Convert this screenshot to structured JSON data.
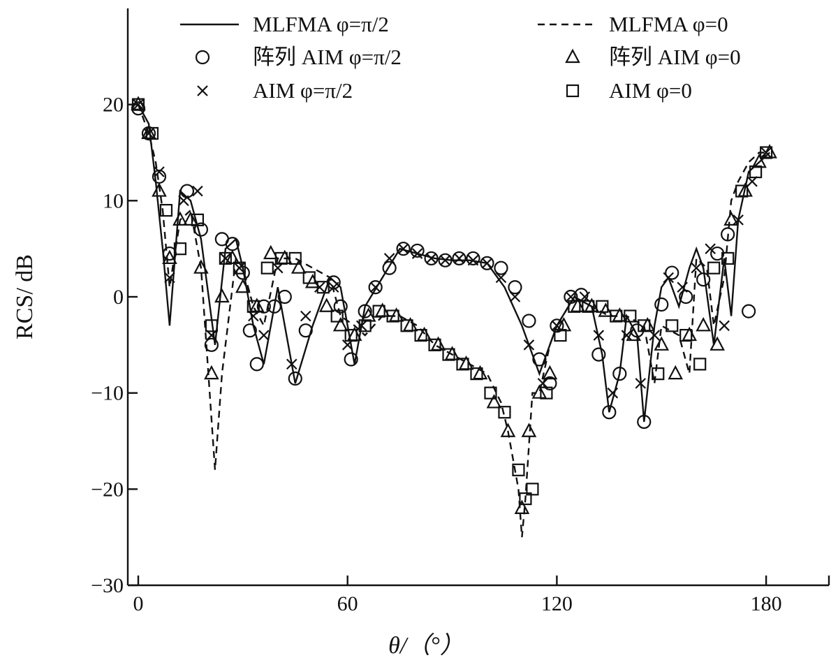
{
  "chart_data": {
    "type": "line",
    "title": "",
    "xlabel": "θ/（°）",
    "ylabel": "RCS/ dB",
    "xlim": [
      -3,
      198
    ],
    "ylim": [
      -30,
      30
    ],
    "xticks": [
      0,
      60,
      120,
      180
    ],
    "yticks": [
      -30,
      -20,
      -10,
      0,
      10,
      20
    ],
    "xtick_labels": [
      "0",
      "60",
      "120",
      "180"
    ],
    "ytick_labels": [
      "−30",
      "−20",
      "−10",
      "0",
      "10",
      "20"
    ],
    "grid": false,
    "legend_position": "top",
    "series": [
      {
        "name": "MLFMA φ=π/2",
        "style": "solid",
        "marker": "none",
        "x": [
          0,
          3,
          5,
          7,
          9,
          12,
          15,
          18,
          22,
          25,
          28,
          30,
          33,
          36,
          40,
          45,
          50,
          55,
          58,
          62,
          65,
          70,
          75,
          80,
          85,
          90,
          95,
          100,
          105,
          110,
          115,
          120,
          125,
          130,
          133,
          135,
          138,
          140,
          143,
          145,
          148,
          150,
          152,
          155,
          158,
          160,
          162,
          165,
          168,
          170,
          172,
          175,
          178,
          181
        ],
        "y": [
          20,
          18,
          12,
          5,
          -3,
          11,
          10,
          6,
          -5,
          5,
          6,
          3,
          -3,
          -7,
          1,
          -9,
          -3,
          2,
          1,
          -7,
          -1,
          2,
          5,
          4.5,
          4,
          3.8,
          3.8,
          3.5,
          1,
          -3,
          -8,
          -3,
          0,
          -1,
          -6,
          -12,
          -8,
          -2,
          -4,
          -13,
          -3,
          1,
          2,
          -1,
          3,
          5,
          3,
          -5,
          4,
          -2,
          8,
          13,
          14,
          15
        ]
      },
      {
        "name": "MLFMA φ=0",
        "style": "dashed",
        "marker": "none",
        "x": [
          0,
          3,
          5,
          7,
          9,
          12,
          15,
          18,
          22,
          24,
          28,
          30,
          33,
          36,
          40,
          45,
          50,
          55,
          58,
          62,
          65,
          70,
          75,
          80,
          85,
          90,
          95,
          100,
          104,
          106,
          109,
          110,
          111,
          113,
          115,
          118,
          120,
          125,
          130,
          135,
          140,
          145,
          148,
          150,
          155,
          158,
          160,
          163,
          165,
          168,
          170,
          172,
          175,
          178,
          181
        ],
        "y": [
          20,
          17,
          14,
          9,
          1,
          8,
          9,
          3,
          -18,
          -8,
          4,
          3,
          -1,
          -3,
          4,
          4,
          3,
          2,
          -2,
          -3,
          -4,
          -2,
          -2,
          -3,
          -5,
          -6,
          -7,
          -8,
          -11,
          -14,
          -20,
          -25,
          -21,
          -10,
          -10,
          -5,
          -3,
          0,
          -1,
          -2,
          -2,
          -3,
          -9,
          -3,
          -4,
          -8,
          4,
          3,
          -3,
          2,
          10,
          12,
          14,
          15,
          15
        ]
      },
      {
        "name": "阵列 AIM φ=π/2",
        "style": "none",
        "marker": "circle",
        "x": [
          0,
          3,
          6,
          9,
          14,
          18,
          21,
          24,
          27,
          30,
          32,
          34,
          36,
          39,
          42,
          45,
          48,
          56,
          58,
          61,
          65,
          68,
          72,
          76,
          80,
          84,
          88,
          92,
          96,
          100,
          104,
          108,
          112,
          115,
          118,
          120,
          124,
          127,
          132,
          135,
          138,
          143,
          145,
          150,
          153,
          157,
          162,
          166,
          169,
          175
        ],
        "y": [
          19.6,
          17,
          12.5,
          4.5,
          11,
          7,
          -5,
          6,
          5.5,
          2.5,
          -3.5,
          -7,
          -1,
          -1,
          0,
          -8.5,
          -3.5,
          1.5,
          -1,
          -6.5,
          -1.5,
          1,
          3,
          5,
          4.8,
          4,
          3.8,
          4,
          4,
          3.5,
          3,
          1,
          -2.5,
          -6.5,
          -9,
          -3,
          0,
          0.2,
          -6,
          -12,
          -8,
          -3.5,
          -13,
          -0.8,
          2.5,
          0,
          1.8,
          4.5,
          6.5,
          -1.5
        ]
      },
      {
        "name": "阵列 AIM φ=0",
        "style": "none",
        "marker": "triangle",
        "x": [
          0,
          3,
          6,
          9,
          12,
          15,
          18,
          21,
          24,
          27,
          30,
          34,
          38,
          42,
          46,
          50,
          54,
          58,
          62,
          66,
          70,
          74,
          78,
          82,
          86,
          90,
          94,
          98,
          102,
          106,
          110,
          112,
          115,
          118,
          122,
          126,
          130,
          134,
          138,
          142,
          146,
          150,
          154,
          158,
          162,
          166,
          170,
          174,
          178,
          181
        ],
        "y": [
          20,
          17,
          11,
          4,
          8,
          8,
          3,
          -8,
          0,
          4,
          1,
          -1,
          4.5,
          4,
          3,
          1.5,
          -1,
          -3,
          -4,
          -2,
          -1.5,
          -2,
          -3,
          -4,
          -5,
          -6,
          -7,
          -8,
          -11,
          -14,
          -22,
          -14,
          -10,
          -8,
          -3,
          -1,
          -1,
          -1.5,
          -2,
          -4,
          -3,
          -5,
          -8,
          -4,
          -3,
          -5,
          8,
          11,
          14,
          15
        ]
      },
      {
        "name": "AIM φ=π/2",
        "style": "none",
        "marker": "cross",
        "x": [
          0,
          3,
          6,
          9,
          13,
          17,
          21,
          25,
          29,
          33,
          36,
          40,
          44,
          48,
          52,
          56,
          60,
          64,
          68,
          72,
          76,
          80,
          84,
          88,
          92,
          96,
          100,
          104,
          108,
          112,
          116,
          120,
          124,
          128,
          132,
          136,
          140,
          144,
          148,
          152,
          156,
          160,
          164,
          168,
          172,
          176,
          180
        ],
        "y": [
          20,
          17,
          13,
          2,
          10,
          11,
          -4,
          4,
          3,
          -2,
          -4,
          3,
          -7,
          -2,
          1,
          1,
          -5,
          -3,
          1,
          4,
          5,
          4.5,
          4,
          3.8,
          4,
          3.8,
          3.5,
          2,
          0,
          -5,
          -9,
          -3,
          0,
          0,
          -4,
          -10,
          -4,
          -9,
          -4,
          2,
          1,
          3,
          5,
          -3,
          8,
          12,
          15
        ]
      },
      {
        "name": "AIM φ=0",
        "style": "none",
        "marker": "square",
        "x": [
          0,
          4,
          8,
          12,
          17,
          21,
          25,
          29,
          33,
          37,
          41,
          45,
          49,
          53,
          57,
          61,
          65,
          69,
          73,
          77,
          81,
          85,
          89,
          93,
          97,
          101,
          105,
          109,
          111,
          113,
          117,
          121,
          125,
          129,
          133,
          137,
          141,
          145,
          149,
          153,
          157,
          161,
          165,
          169,
          173,
          177,
          180
        ],
        "y": [
          20,
          17,
          9,
          5,
          8,
          -3,
          4,
          3,
          -1,
          3,
          4,
          4,
          2,
          1,
          -2,
          -4,
          -3,
          -1.5,
          -2,
          -3,
          -4,
          -5,
          -6,
          -7,
          -8,
          -10,
          -12,
          -18,
          -21,
          -20,
          -10,
          -4,
          -1,
          -1,
          -1,
          -2,
          -2,
          -3,
          -8,
          -3,
          -4,
          -7,
          3,
          4,
          11,
          13,
          15
        ]
      }
    ]
  },
  "legend": {
    "entries": [
      {
        "label": "MLFMA φ=π/2",
        "symbol": "solid"
      },
      {
        "label": "MLFMA φ=0",
        "symbol": "dashed"
      },
      {
        "label": "阵列 AIM φ=π/2",
        "symbol": "circle"
      },
      {
        "label": "阵列 AIM φ=0",
        "symbol": "triangle"
      },
      {
        "label": "AIM φ=π/2",
        "symbol": "cross"
      },
      {
        "label": "AIM φ=0",
        "symbol": "square"
      }
    ]
  }
}
